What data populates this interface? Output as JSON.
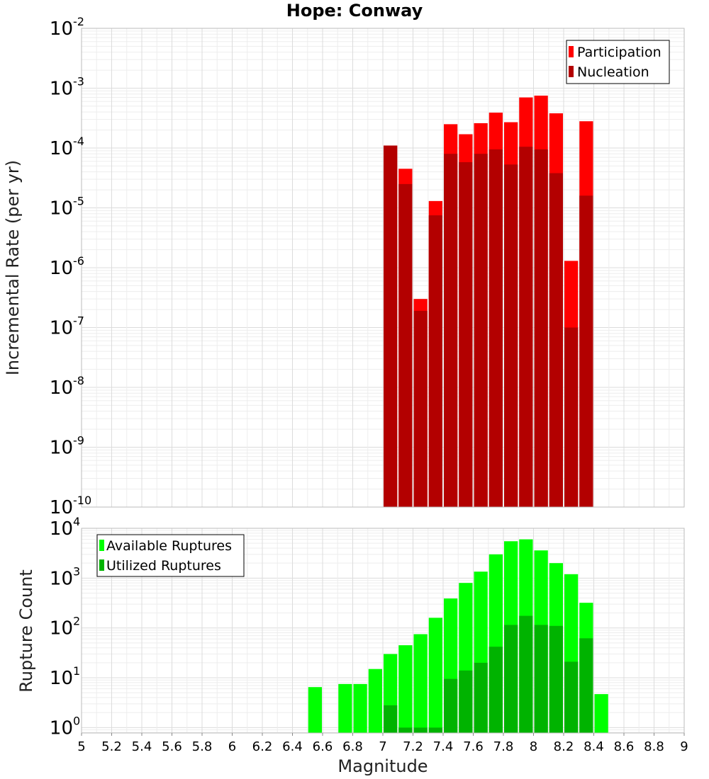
{
  "chart_data": [
    {
      "type": "bar",
      "title": "Hope: Conway",
      "ylabel": "Incremental Rate (per yr)",
      "xlabel": "",
      "yscale": "log",
      "xlim": [
        5,
        9
      ],
      "ylim": [
        1e-10,
        0.01
      ],
      "y_ticks": [
        {
          "base": "10",
          "exp": "-10"
        },
        {
          "base": "10",
          "exp": "-9"
        },
        {
          "base": "10",
          "exp": "-8"
        },
        {
          "base": "10",
          "exp": "-7"
        },
        {
          "base": "10",
          "exp": "-6"
        },
        {
          "base": "10",
          "exp": "-5"
        },
        {
          "base": "10",
          "exp": "-4"
        },
        {
          "base": "10",
          "exp": "-3"
        },
        {
          "base": "10",
          "exp": "-2"
        }
      ],
      "grid": true,
      "legend_position": "top-right",
      "bin_width": 0.1,
      "x": [
        7.05,
        7.15,
        7.25,
        7.35,
        7.45,
        7.55,
        7.65,
        7.75,
        7.85,
        7.95,
        8.05,
        8.15,
        8.25,
        8.35
      ],
      "series": [
        {
          "name": "Participation",
          "color": "#ff0000",
          "values": [
            0.00011,
            4.5e-05,
            3e-07,
            1.3e-05,
            0.00025,
            0.00017,
            0.00026,
            0.00039,
            0.00027,
            0.0007,
            0.00075,
            0.00038,
            1.3e-06,
            0.00028
          ]
        },
        {
          "name": "Nucleation",
          "color": "#b30000",
          "values": [
            0.00011,
            2.5e-05,
            1.9e-07,
            7.5e-06,
            8e-05,
            5.8e-05,
            8e-05,
            9.5e-05,
            5.3e-05,
            0.000105,
            9.5e-05,
            3.8e-05,
            1e-07,
            1.6e-05
          ]
        }
      ]
    },
    {
      "type": "bar",
      "title": "",
      "ylabel": "Rupture Count",
      "xlabel": "Magnitude",
      "yscale": "log",
      "xlim": [
        5,
        9
      ],
      "ylim": [
        0.78,
        10000
      ],
      "y_ticks": [
        {
          "base": "10",
          "exp": "0"
        },
        {
          "base": "10",
          "exp": "1"
        },
        {
          "base": "10",
          "exp": "2"
        },
        {
          "base": "10",
          "exp": "3"
        },
        {
          "base": "10",
          "exp": "4"
        }
      ],
      "x_ticks": [
        "5",
        "5.2",
        "5.4",
        "5.6",
        "5.8",
        "6",
        "6.2",
        "6.4",
        "6.6",
        "6.8",
        "7",
        "7.2",
        "7.4",
        "7.6",
        "7.8",
        "8",
        "8.2",
        "8.4",
        "8.6",
        "8.8",
        "9"
      ],
      "grid": true,
      "legend_position": "top-left",
      "bin_width": 0.1,
      "x": [
        6.55,
        6.75,
        6.85,
        6.95,
        7.05,
        7.15,
        7.25,
        7.35,
        7.45,
        7.55,
        7.65,
        7.75,
        7.85,
        7.95,
        8.05,
        8.15,
        8.25,
        8.35,
        8.45
      ],
      "series": [
        {
          "name": "Available Ruptures",
          "color": "#00ff00",
          "values": [
            6.5,
            7.5,
            7.5,
            15,
            30,
            45,
            75,
            160,
            390,
            800,
            1350,
            3000,
            5500,
            6000,
            3600,
            2000,
            1200,
            320,
            4.7
          ]
        },
        {
          "name": "Utilized Ruptures",
          "color": "#00b300",
          "values": [
            null,
            null,
            null,
            null,
            2.8,
            1,
            1,
            1,
            9.5,
            14,
            20,
            42,
            115,
            175,
            115,
            110,
            21,
            62,
            null
          ]
        }
      ]
    }
  ]
}
